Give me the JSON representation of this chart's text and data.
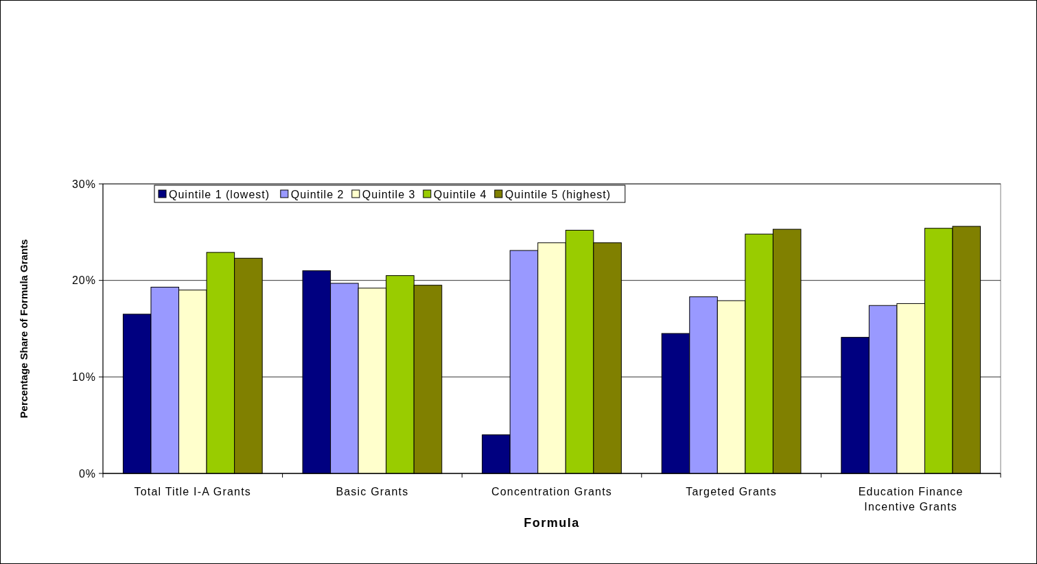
{
  "chart_data": {
    "type": "bar",
    "xlabel": "Formula",
    "ylabel": "Percentage Share of Formula Grants",
    "categories": [
      "Total Title I-A Grants",
      "Basic Grants",
      "Concentration Grants",
      "Targeted Grants",
      "Education Finance Incentive Grants"
    ],
    "series": [
      {
        "name": "Quintile 1 (lowest)",
        "color": "#000080",
        "values": [
          16.5,
          21.0,
          4.0,
          14.5,
          14.1
        ]
      },
      {
        "name": "Quintile 2",
        "color": "#9999ff",
        "values": [
          19.3,
          19.7,
          23.1,
          18.3,
          17.4
        ]
      },
      {
        "name": "Quintile 3",
        "color": "#ffffcc",
        "values": [
          19.0,
          19.2,
          23.9,
          17.9,
          17.6
        ]
      },
      {
        "name": "Quintile 4",
        "color": "#99cc00",
        "values": [
          22.9,
          20.5,
          25.2,
          24.8,
          25.4
        ]
      },
      {
        "name": "Quintile 5 (highest)",
        "color": "#808000",
        "values": [
          22.3,
          19.5,
          23.9,
          25.3,
          25.6
        ]
      }
    ],
    "ylim": [
      0,
      30
    ],
    "yticks": [
      {
        "value": 0,
        "label": "0%"
      },
      {
        "value": 10,
        "label": "10%"
      },
      {
        "value": 20,
        "label": "20%"
      },
      {
        "value": 30,
        "label": "30%"
      }
    ],
    "grid": "y",
    "legend": "top left"
  }
}
